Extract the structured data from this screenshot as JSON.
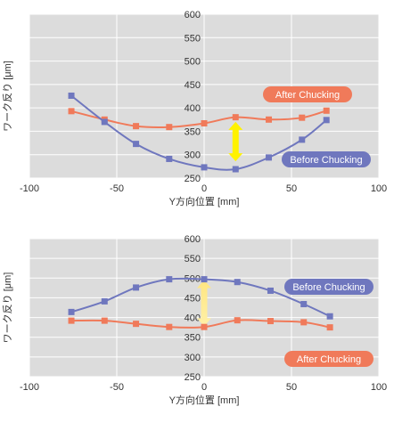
{
  "colors": {
    "after": "#F07A5A",
    "before": "#6F77BE",
    "arrow_top": "#FFF200",
    "arrow_bottom": "#FFE680",
    "plot_bg": "#DCDCDC",
    "grid": "#FFFFFF"
  },
  "chart_data": [
    {
      "type": "line",
      "xlabel": "Y方向位置 [mm]",
      "ylabel": "ワーク反り [μm]",
      "xlim": [
        -100,
        100
      ],
      "ylim": [
        250,
        600
      ],
      "xticks": [
        "-100",
        "-50",
        "0",
        "50",
        "100"
      ],
      "yticks": [
        "250",
        "300",
        "350",
        "400",
        "450",
        "500",
        "550",
        "600"
      ],
      "grid": true,
      "series": [
        {
          "name": "After Chucking",
          "color": "#F07A5A",
          "x": [
            -76,
            -57,
            -39,
            -20,
            0,
            18,
            37,
            56,
            70
          ],
          "y": [
            393,
            375,
            361,
            359,
            367,
            380,
            375,
            379,
            394
          ]
        },
        {
          "name": "Before Chucking",
          "color": "#6F77BE",
          "x": [
            -76,
            -57,
            -39,
            -20,
            0,
            18,
            37,
            56,
            70
          ],
          "y": [
            426,
            370,
            323,
            291,
            273,
            269,
            294,
            332,
            374
          ]
        }
      ],
      "arrow": {
        "x": 18,
        "y_from": 370,
        "y_to": 286
      }
    },
    {
      "type": "line",
      "xlabel": "Y方向位置 [mm]",
      "ylabel": "ワーク反り [μm]",
      "xlim": [
        -100,
        100
      ],
      "ylim": [
        250,
        600
      ],
      "xticks": [
        "-100",
        "-50",
        "0",
        "50",
        "100"
      ],
      "yticks": [
        "250",
        "300",
        "350",
        "400",
        "450",
        "500",
        "550",
        "600"
      ],
      "grid": true,
      "series": [
        {
          "name": "Before Chucking",
          "color": "#6F77BE",
          "x": [
            -76,
            -57,
            -39,
            -20,
            0,
            19,
            38,
            57,
            72
          ],
          "y": [
            414,
            441,
            476,
            497,
            497,
            490,
            468,
            434,
            403
          ]
        },
        {
          "name": "After Chucking",
          "color": "#F07A5A",
          "x": [
            -76,
            -57,
            -39,
            -20,
            0,
            19,
            38,
            57,
            72
          ],
          "y": [
            392,
            392,
            384,
            376,
            376,
            393,
            391,
            388,
            375
          ]
        }
      ],
      "arrow": {
        "x": 0,
        "y_from": 495,
        "y_to": 378
      }
    }
  ]
}
